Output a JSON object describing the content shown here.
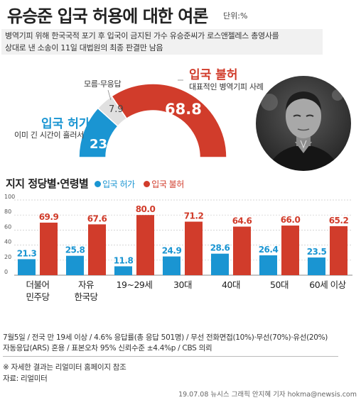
{
  "header": {
    "title": "유승준 입국 허용에 대한 여론",
    "unit": "단위:%",
    "intro_line1": "병역기피 위해 한국국적 포기 후 입국이 금지된 가수 유승준씨가 로스앤젤레스 총영사를",
    "intro_line2": "상대로 낸 소송이 11일 대법원의 최종 판결만 남음"
  },
  "summary": {
    "allow_label": "입국 허가",
    "allow_note": "이미 긴 시간이 흘러서",
    "allow_value": "23.3",
    "noresp_label": "모름·무응답",
    "noresp_value": "7.9",
    "deny_label": "입국 불허",
    "deny_note": "대표적인 병역기피 사례",
    "deny_value": "68.8"
  },
  "colors": {
    "red": "#d13c2b",
    "blue": "#1a95d2",
    "gray": "#e0e0e0"
  },
  "breakdown": {
    "title": "지지 정당별·연령별",
    "legend_allow": "입국 허가",
    "legend_deny": "입국 불허"
  },
  "chart_data": [
    {
      "type": "pie",
      "labels": [
        "입국 허가",
        "모름·무응답",
        "입국 불허"
      ],
      "values": [
        23.3,
        7.9,
        68.8
      ]
    },
    {
      "type": "bar",
      "title": "지지 정당별·연령별",
      "categories": [
        "더불어 민주당",
        "자유 한국당",
        "19~29세",
        "30대",
        "40대",
        "50대",
        "60세 이상"
      ],
      "series": [
        {
          "name": "입국 허가",
          "values": [
            21.3,
            25.8,
            11.8,
            24.9,
            28.6,
            26.4,
            23.5
          ]
        },
        {
          "name": "입국 불허",
          "values": [
            69.9,
            67.6,
            80.0,
            71.2,
            64.6,
            66.0,
            65.2
          ]
        }
      ],
      "value_labels_allow": [
        "21.3",
        "25.8",
        "11.8",
        "24.9",
        "28.6",
        "26.4",
        "23.5"
      ],
      "value_labels_deny": [
        "69.9",
        "67.6",
        "80.0",
        "71.2",
        "64.6",
        "66.0",
        "65.2"
      ],
      "category_lines": [
        [
          "더불어",
          "민주당"
        ],
        [
          "자유",
          "한국당"
        ],
        [
          "19~29세"
        ],
        [
          "30대"
        ],
        [
          "40대"
        ],
        [
          "50대"
        ],
        [
          "60세 이상"
        ]
      ],
      "yticks": [
        "100",
        "80",
        "60",
        "40",
        "20",
        "0"
      ],
      "ylim": [
        0,
        100
      ],
      "grid": true
    }
  ],
  "footer": {
    "line1": "7월5일 / 전국 만 19세 이상 / 4.6% 응답률(총 응답 501명) / 무선 전화면접(10%)·무선(70%)·유선(20%)",
    "line2": "자동응답(ARS) 혼용 / 표본오차 95% 신뢰수준 ±4.4%p / CBS 의뢰",
    "detail_note": "※ 자세한 결과는 리얼미터 홈페이지 참조",
    "source": "자료: 리얼미터",
    "credit": "19.07.08 뉴시스 그래픽 안지혜 기자 hokma@newsis.com"
  }
}
